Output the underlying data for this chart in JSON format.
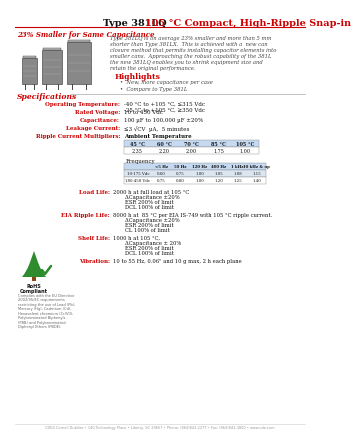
{
  "title_black": "Type 381LQ ",
  "title_red": "105 °C Compact, High-Ripple Snap-in",
  "subtitle": "23% Smaller for Same Capacitance",
  "bg_color": "#ffffff",
  "red_color": "#cc0000",
  "body_text_color": "#333333",
  "description": "Type 381LQ is on average 23% smaller and more than 5 mm\nshorter than Type 381LX.  This is achieved with a  new can\nclosure method that permits installing capacitor elements into\nsmaller cans.  Approaching the robust capability of the 381L\nthe new 381LQ enables you to shrink equipment size and\nretain the original performance.",
  "highlights_title": "Highlights",
  "highlights": [
    "New, more capacitance per case",
    "Compare to Type 381L"
  ],
  "specs_title": "Specifications",
  "spec_rows": [
    [
      "Operating Temperature:",
      "-40 °C to +105 °C, ≤315 Vdc\n-25 °C to +105 °C, ≥350 Vdc"
    ],
    [
      "Rated Voltage:",
      "10 to 450 Vdc"
    ],
    [
      "Capacitance:",
      "100 µF to 100,000 µF ±20%"
    ],
    [
      "Leakage Current:",
      "≤3 √CV  µA,  5 minutes"
    ],
    [
      "Ripple Current Multipliers:",
      "Ambient Temperature"
    ]
  ],
  "amb_temp_headers": [
    "45 °C",
    "60 °C",
    "70 °C",
    "85 °C",
    "105 °C"
  ],
  "amb_temp_values": [
    "2.35",
    "2.20",
    "2.00",
    "1.75",
    "1.00"
  ],
  "freq_label": "Frequency",
  "freq_headers": [
    "<5 Hz",
    "50 Hz",
    "120 Hz",
    "400 Hz",
    "1 kHz",
    "10 kHz & up"
  ],
  "freq_row1_label": "10-175 Vdc",
  "freq_row1": [
    "0.60",
    "0.75",
    "1.00",
    "1.05",
    "1.08",
    "1.15"
  ],
  "freq_row2_label": "180-450 Vdc",
  "freq_row2": [
    "0.75",
    "0.80",
    "1.00",
    "1.20",
    "1.25",
    "1.40"
  ],
  "load_life_label": "Load Life:",
  "load_life_lines": [
    "2000 h at full load at 105 °C",
    "ΔCapacitance ±20%",
    "ESR 200% of limit",
    "DCL 100% of limit"
  ],
  "eia_label": "EIA Ripple Life:",
  "eia_lines": [
    "8000 h at  85 °C per EIA IS-749 with 105 °C ripple current.",
    "ΔCapacitance ±20%",
    "ESR 200% of limit",
    "CL 100% of limit"
  ],
  "shelf_label": "Shelf Life:",
  "shelf_lines": [
    "1000 h at 105 °C,",
    "ΔCapacitance ± 20%",
    "ESR 200% of limit",
    "DCL 100% of limit"
  ],
  "vib_label": "Vibration:",
  "vib_lines": [
    "10 to 55 Hz, 0.06\" and 10 g max, 2 h each plane"
  ],
  "footer": "CDE4 Cornell Dubilier • 140 Technology Place • Liberty, SC 29657 • Phone: (864)843-2277 • Fax: (864)843-3800 • www.cde.com",
  "rohs_text1": "RoHS",
  "rohs_text2": "Compliant",
  "rohs_small": [
    "Complies with the EU Directive",
    "2002/95/EC requirements",
    "restricting the use of Lead (Pb),",
    "Mercury (Hg), Cadmium (Cd),",
    "Hexavalent chromium (Cr(VI)),",
    "Polybrominated Biphenyls",
    "(PBB) and Polybrominated",
    "Diphenyl Ethers (PBDE)."
  ]
}
